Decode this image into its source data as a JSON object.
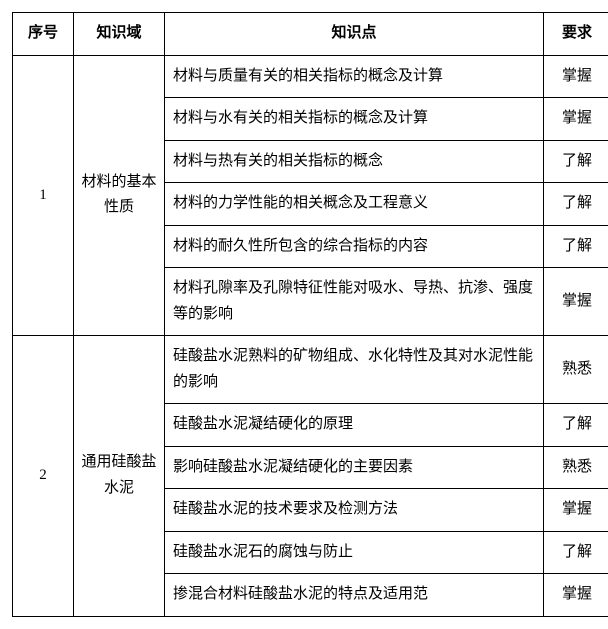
{
  "headers": {
    "seq": "序号",
    "domain": "知识域",
    "point": "知识点",
    "req": "要求"
  },
  "section1": {
    "seq": "1",
    "domain": "材料的基本性质",
    "points": {
      "p1": "材料与质量有关的相关指标的概念及计算",
      "p2": "材料与水有关的相关指标的概念及计算",
      "p3": "材料与热有关的相关指标的概念",
      "p4": "材料的力学性能的相关概念及工程意义",
      "p5": "材料的耐久性所包含的综合指标的内容",
      "p6": "材料孔隙率及孔隙特征性能对吸水、导热、抗渗、强度等的影响"
    },
    "reqs": {
      "r1": "掌握",
      "r2": "掌握",
      "r3": "了解",
      "r4": "了解",
      "r5": "了解",
      "r6": "掌握"
    }
  },
  "section2": {
    "seq": "2",
    "domain": "通用硅酸盐水泥",
    "points": {
      "p1": "硅酸盐水泥熟料的矿物组成、水化特性及其对水泥性能的影响",
      "p2": "硅酸盐水泥凝结硬化的原理",
      "p3": "影响硅酸盐水泥凝结硬化的主要因素",
      "p4": "硅酸盐水泥的技术要求及检测方法",
      "p5": "硅酸盐水泥石的腐蚀与防止",
      "p6": "掺混合材料硅酸盐水泥的特点及适用范"
    },
    "reqs": {
      "r1": "熟悉",
      "r2": "了解",
      "r3": "熟悉",
      "r4": "掌握",
      "r5": "了解",
      "r6": "掌握"
    }
  }
}
